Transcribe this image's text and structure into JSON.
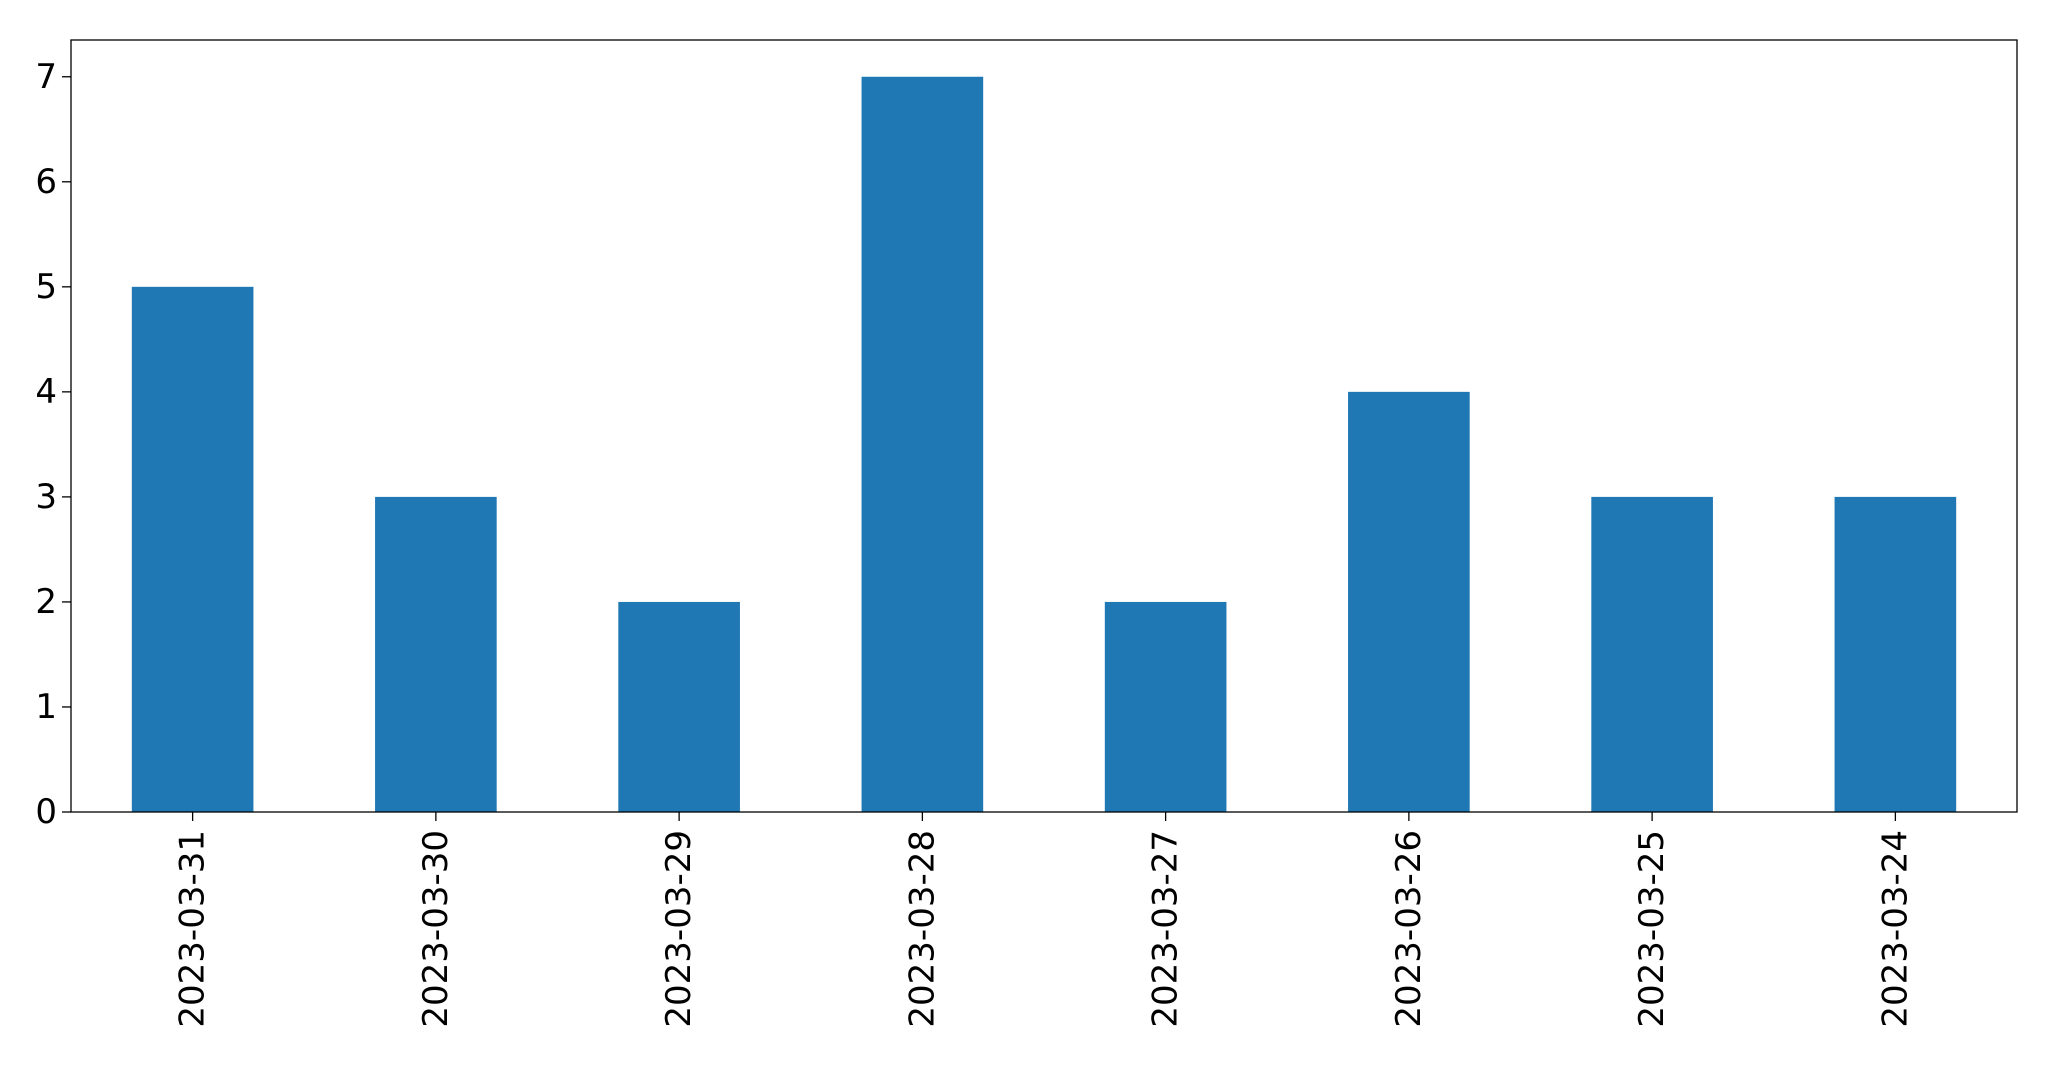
{
  "chart_data": {
    "type": "bar",
    "title": "",
    "xlabel": "",
    "ylabel": "",
    "categories": [
      "2023-03-31",
      "2023-03-30",
      "2023-03-29",
      "2023-03-28",
      "2023-03-27",
      "2023-03-26",
      "2023-03-25",
      "2023-03-24"
    ],
    "values": [
      5,
      3,
      2,
      7,
      2,
      4,
      3,
      3
    ],
    "ylim": [
      0,
      7.35
    ],
    "yticks": [
      0,
      1,
      2,
      3,
      4,
      5,
      6,
      7
    ],
    "bar_color": "#1f77b4",
    "grid": false,
    "legend": "none"
  }
}
